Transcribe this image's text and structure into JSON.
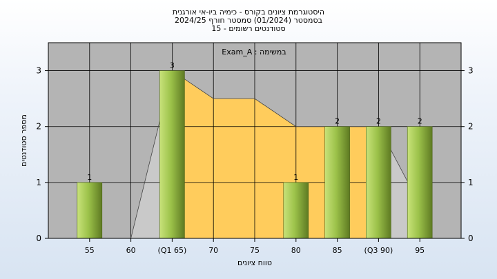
{
  "chart_data": {
    "type": "bar",
    "title_lines": [
      "היסטוגרמת ציונים בקורס - כימיה ביו-אי אורגנית",
      "בסמסטר  (01/2024)  סמסטר חורף 2024/25",
      "סטודנטים רשומים - 15"
    ],
    "xlabel": "טווח ציונים",
    "ylabel": "מספר סטודנטים",
    "legend_text": "Exam_A : במשימה",
    "x_tick_labels": [
      "55",
      "60",
      "(Q1 65)",
      "70",
      "75",
      "80",
      "85",
      "(Q3 90)",
      "95"
    ],
    "categories": [
      55,
      60,
      65,
      70,
      75,
      80,
      85,
      90,
      95
    ],
    "values": [
      1,
      0,
      3,
      0,
      0,
      1,
      2,
      2,
      2
    ],
    "data_labels": [
      "1",
      "",
      "3",
      "",
      "",
      "1",
      "2",
      "2",
      "2"
    ],
    "quartile_band": {
      "from": 65,
      "to": 90,
      "upper": [
        3,
        2.5,
        2.5,
        2,
        2,
        2
      ]
    },
    "trend_line": [
      [
        60,
        0
      ],
      [
        65,
        3
      ],
      [
        70,
        2.5
      ],
      [
        75,
        2.5
      ],
      [
        80,
        2
      ],
      [
        85,
        2
      ],
      [
        90,
        2
      ],
      [
        95,
        0.6
      ]
    ],
    "ylim": [
      0,
      3.5
    ],
    "y_ticks": [
      0,
      1,
      2,
      3
    ],
    "grid": true,
    "colors": {
      "plot_bg": "#b4b4b4",
      "band": "#ffcc5c",
      "bar_light": "#c8e27a",
      "bar_dark": "#5e7a22",
      "grid": "#000000"
    }
  }
}
